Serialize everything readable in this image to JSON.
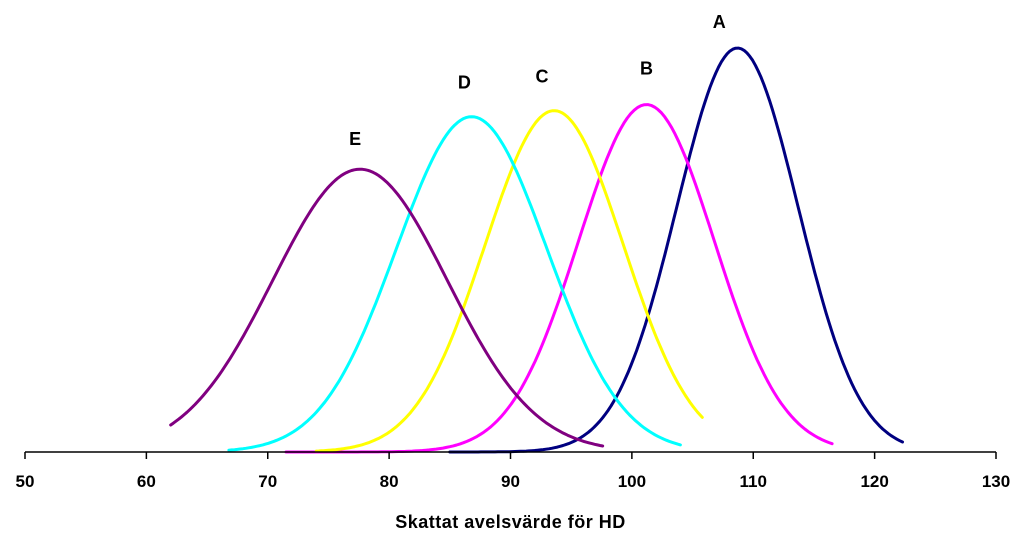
{
  "chart_data": {
    "type": "line",
    "title": "",
    "xlabel": "Skattat avelsvärde för HD",
    "ylabel": "",
    "xlim": [
      50,
      130
    ],
    "ylim": [
      0,
      1.0
    ],
    "xticks": [
      "50",
      "60",
      "70",
      "80",
      "90",
      "100",
      "110",
      "120",
      "130"
    ],
    "grid": false,
    "legend": "none",
    "series": [
      {
        "name": "A",
        "color": "#000080",
        "mean": 108.7,
        "sd": 5.0,
        "peak": 1.0,
        "x": [
          85,
          122.3
        ],
        "label_x": 107.2,
        "label_y": 1.05
      },
      {
        "name": "B",
        "color": "#FF00FF",
        "mean": 101.2,
        "sd": 5.6,
        "peak": 0.86,
        "x": [
          71.5,
          116.5
        ],
        "label_x": 101.2,
        "label_y": 0.935
      },
      {
        "name": "C",
        "color": "#FFFF00",
        "mean": 93.6,
        "sd": 5.7,
        "peak": 0.845,
        "x": [
          74,
          105.8
        ],
        "label_x": 92.6,
        "label_y": 0.915
      },
      {
        "name": "D",
        "color": "#00FFFF",
        "mean": 86.8,
        "sd": 6.2,
        "peak": 0.83,
        "x": [
          66.8,
          104.0
        ],
        "label_x": 86.2,
        "label_y": 0.9
      },
      {
        "name": "E",
        "color": "#800080",
        "mean": 77.6,
        "sd": 7.2,
        "peak": 0.7,
        "x": [
          62.0,
          97.6
        ],
        "label_x": 77.2,
        "label_y": 0.76
      }
    ]
  }
}
